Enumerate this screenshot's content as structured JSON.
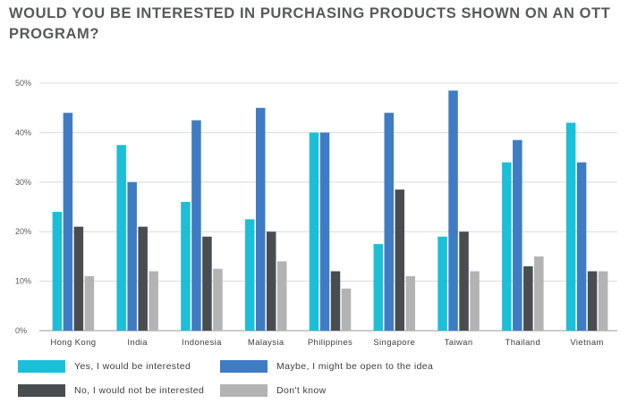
{
  "chart_data": {
    "type": "bar",
    "title": "WOULD YOU BE INTERESTED IN PURCHASING PRODUCTS SHOWN ON AN OTT PROGRAM?",
    "xlabel": "",
    "ylabel": "",
    "ylim": [
      0,
      50
    ],
    "yticks": [
      "0%",
      "10%",
      "20%",
      "30%",
      "40%",
      "50%"
    ],
    "grid": true,
    "legend_position": "bottom",
    "categories": [
      "Hong Kong",
      "India",
      "Indonesia",
      "Malaysia",
      "Philippines",
      "Singapore",
      "Taiwan",
      "Thailand",
      "Vietnam"
    ],
    "series": [
      {
        "name": "Yes, I would be interested",
        "color": "#1bbfd8",
        "values": [
          24,
          37.5,
          26,
          22.5,
          40,
          17.5,
          19,
          34,
          42
        ]
      },
      {
        "name": "Maybe, I might be open to the idea",
        "color": "#3f7cc4",
        "values": [
          44,
          30,
          42.5,
          45,
          40,
          44,
          48.5,
          38.5,
          34
        ]
      },
      {
        "name": "No, I would not be interested",
        "color": "#4a4d50",
        "values": [
          21,
          21,
          19,
          20,
          12,
          28.5,
          20,
          13,
          12
        ]
      },
      {
        "name": "Don't know",
        "color": "#b3b3b3",
        "values": [
          11,
          12,
          12.5,
          14,
          8.5,
          11,
          12,
          15,
          12
        ]
      }
    ]
  }
}
